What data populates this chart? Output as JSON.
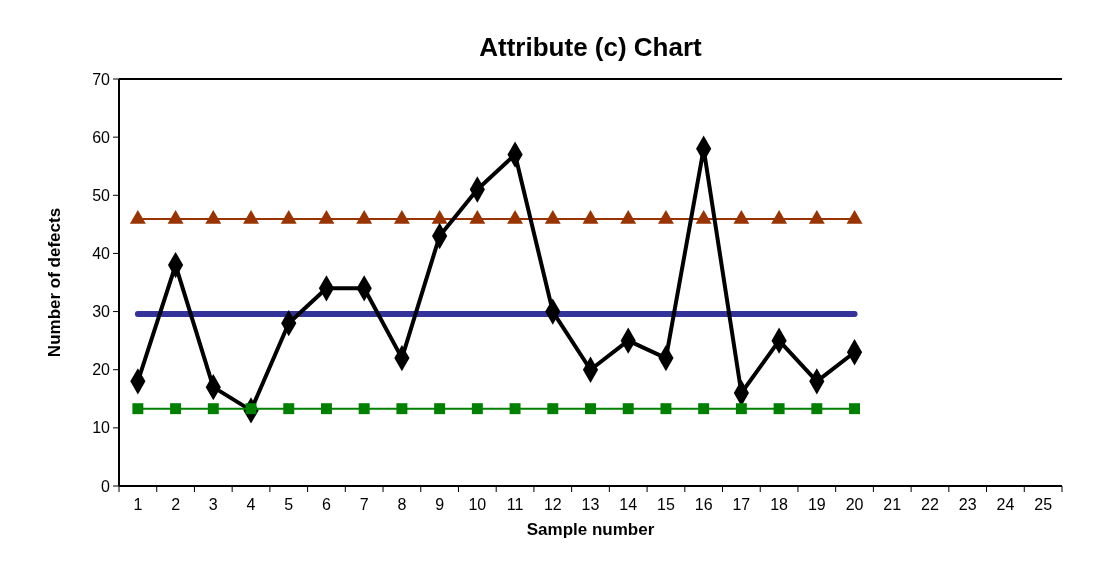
{
  "chart_data": {
    "type": "line",
    "title": "Attribute (c) Chart",
    "xlabel": "Sample number",
    "ylabel": "Number of defects",
    "x": [
      1,
      2,
      3,
      4,
      5,
      6,
      7,
      8,
      9,
      10,
      11,
      12,
      13,
      14,
      15,
      16,
      17,
      18,
      19,
      20
    ],
    "xlim": [
      0.5,
      25.5
    ],
    "xticks": [
      {
        "value": 0.5,
        "label": null
      },
      1,
      {
        "value": 1.5,
        "label": null
      },
      2,
      {
        "value": 2.5,
        "label": null
      },
      3,
      {
        "value": 3.5,
        "label": null
      },
      4,
      {
        "value": 4.5,
        "label": null
      },
      5,
      {
        "value": 5.5,
        "label": null
      },
      6,
      {
        "value": 6.5,
        "label": null
      },
      7,
      {
        "value": 7.5,
        "label": null
      },
      8,
      {
        "value": 8.5,
        "label": null
      },
      9,
      {
        "value": 9.5,
        "label": null
      },
      10,
      {
        "value": 10.5,
        "label": null
      },
      11,
      {
        "value": 11.5,
        "label": null
      },
      12,
      {
        "value": 12.5,
        "label": null
      },
      13,
      {
        "value": 13.5,
        "label": null
      },
      14,
      {
        "value": 14.5,
        "label": null
      },
      15,
      {
        "value": 15.5,
        "label": null
      },
      16,
      {
        "value": 16.5,
        "label": null
      },
      17,
      {
        "value": 17.5,
        "label": null
      },
      18,
      {
        "value": 18.5,
        "label": null
      },
      19,
      {
        "value": 19.5,
        "label": null
      },
      20,
      {
        "value": 20.5,
        "label": null
      },
      21,
      {
        "value": 21.5,
        "label": null
      },
      22,
      {
        "value": 22.5,
        "label": null
      },
      23,
      {
        "value": 23.5,
        "label": null
      },
      24,
      {
        "value": 24.5,
        "label": null
      },
      25,
      {
        "value": 25.5,
        "label": null
      }
    ],
    "ylim": [
      0,
      70
    ],
    "yticks": [
      0,
      10,
      20,
      30,
      40,
      50,
      60,
      70
    ],
    "grid": false,
    "series": [
      {
        "color": "#993300",
        "marker": "triangle",
        "values": [
          45.9,
          45.9,
          45.9,
          45.9,
          45.9,
          45.9,
          45.9,
          45.9,
          45.9,
          45.9,
          45.9,
          45.9,
          45.9,
          45.9,
          45.9,
          45.9,
          45.9,
          45.9,
          45.9,
          45.9
        ]
      },
      {
        "color": "#333399",
        "marker": "none",
        "values": [
          29.6,
          29.6,
          29.6,
          29.6,
          29.6,
          29.6,
          29.6,
          29.6,
          29.6,
          29.6,
          29.6,
          29.6,
          29.6,
          29.6,
          29.6,
          29.6,
          29.6,
          29.6,
          29.6,
          29.6
        ]
      },
      {
        "color": "#000000",
        "marker": "diamond",
        "values": [
          18,
          38,
          17,
          13,
          28,
          34,
          34,
          22,
          43,
          51,
          57,
          30,
          20,
          25,
          22,
          58,
          16,
          25,
          18,
          23
        ]
      },
      {
        "color": "#008000",
        "marker": "square",
        "values": [
          13.3,
          13.3,
          13.3,
          13.3,
          13.3,
          13.3,
          13.3,
          13.3,
          13.3,
          13.3,
          13.3,
          13.3,
          13.3,
          13.3,
          13.3,
          13.3,
          13.3,
          13.3,
          13.3,
          13.3
        ]
      }
    ]
  }
}
